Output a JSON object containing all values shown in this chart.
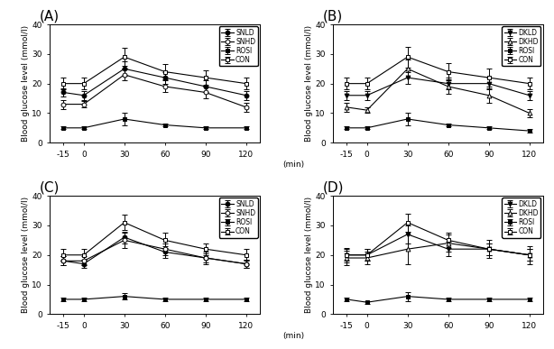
{
  "x": [
    -15,
    0,
    30,
    60,
    90,
    120
  ],
  "panels": {
    "A": {
      "title": "(A)",
      "legend_labels": [
        "SNLD",
        "SNHD",
        "ROSI",
        "CON"
      ],
      "series": {
        "SNLD": {
          "y": [
            17,
            16,
            25,
            22,
            19,
            16
          ],
          "yerr": [
            1.5,
            1.5,
            2.5,
            2,
            2,
            1.5
          ],
          "marker": "o",
          "filled": true
        },
        "SNHD": {
          "y": [
            13,
            13,
            23,
            19,
            17,
            12
          ],
          "yerr": [
            1.5,
            1,
            2,
            2,
            2,
            1.5
          ],
          "marker": "o",
          "filled": false
        },
        "ROSI": {
          "y": [
            5,
            5,
            8,
            6,
            5,
            5
          ],
          "yerr": [
            0.5,
            0.5,
            2,
            0.5,
            0.5,
            0.5
          ],
          "marker": "s",
          "filled": true
        },
        "CON": {
          "y": [
            20,
            20,
            29,
            24,
            22,
            20
          ],
          "yerr": [
            2,
            2,
            3,
            2.5,
            2.5,
            2
          ],
          "marker": "s",
          "filled": false
        }
      }
    },
    "B": {
      "title": "(B)",
      "legend_labels": [
        "DKLD",
        "DKHD",
        "ROSI",
        "CON"
      ],
      "series": {
        "DKLD": {
          "y": [
            16,
            16,
            22,
            20,
            20,
            16
          ],
          "yerr": [
            1.5,
            1.5,
            2,
            2,
            2,
            1.5
          ],
          "marker": "v",
          "filled": true
        },
        "DKHD": {
          "y": [
            12,
            11,
            25,
            19,
            16,
            10
          ],
          "yerr": [
            1.5,
            1,
            3,
            2.5,
            2.5,
            1.5
          ],
          "marker": "^",
          "filled": false
        },
        "ROSI": {
          "y": [
            5,
            5,
            8,
            6,
            5,
            4
          ],
          "yerr": [
            0.5,
            0.5,
            2,
            0.5,
            0.5,
            0.5
          ],
          "marker": "s",
          "filled": true
        },
        "CON": {
          "y": [
            20,
            20,
            29,
            24,
            22,
            20
          ],
          "yerr": [
            2,
            2,
            3.5,
            3,
            3,
            2
          ],
          "marker": "s",
          "filled": false
        }
      }
    },
    "C": {
      "title": "(C)",
      "legend_labels": [
        "SNLD",
        "SNHD",
        "ROSI",
        "CON"
      ],
      "series": {
        "SNLD": {
          "y": [
            18,
            17,
            26,
            21,
            19,
            17
          ],
          "yerr": [
            1.5,
            1.5,
            2,
            2,
            1.5,
            1.5
          ],
          "marker": "o",
          "filled": true
        },
        "SNHD": {
          "y": [
            18,
            18,
            25,
            22,
            19,
            17
          ],
          "yerr": [
            1.5,
            1.5,
            2.5,
            2,
            2,
            1.5
          ],
          "marker": "o",
          "filled": false
        },
        "ROSI": {
          "y": [
            5,
            5,
            6,
            5,
            5,
            5
          ],
          "yerr": [
            0.5,
            0.5,
            1,
            0.5,
            0.5,
            0.5
          ],
          "marker": "s",
          "filled": true
        },
        "CON": {
          "y": [
            20,
            20,
            31,
            25,
            22,
            20
          ],
          "yerr": [
            2,
            2,
            2.5,
            2.5,
            2,
            2
          ],
          "marker": "s",
          "filled": false
        }
      }
    },
    "D": {
      "title": "(D)",
      "legend_labels": [
        "DKLD",
        "DKHD",
        "ROSI",
        "CON"
      ],
      "series": {
        "DKLD": {
          "y": [
            20,
            20,
            27,
            22,
            22,
            20
          ],
          "yerr": [
            2,
            2,
            3,
            2.5,
            2,
            2
          ],
          "marker": "v",
          "filled": true
        },
        "DKHD": {
          "y": [
            19,
            19,
            22,
            24,
            22,
            20
          ],
          "yerr": [
            2.5,
            2,
            5,
            3,
            3,
            3
          ],
          "marker": "^",
          "filled": false
        },
        "ROSI": {
          "y": [
            5,
            4,
            6,
            5,
            5,
            5
          ],
          "yerr": [
            0.5,
            0.5,
            1.5,
            0.5,
            0.5,
            0.5
          ],
          "marker": "s",
          "filled": true
        },
        "CON": {
          "y": [
            20,
            20,
            31,
            25,
            22,
            20
          ],
          "yerr": [
            2.5,
            2,
            3,
            2.5,
            2,
            2
          ],
          "marker": "s",
          "filled": false
        }
      }
    }
  },
  "ylim": [
    0,
    40
  ],
  "yticks": [
    0,
    10,
    20,
    30,
    40
  ],
  "xlabel": "(min)",
  "ylabel": "Blood glucose level (mmol/l)",
  "background_color": "#ffffff",
  "fontsize": 6.5,
  "title_fontsize": 11,
  "marker_size": 3.5,
  "linewidth": 0.8,
  "elinewidth": 0.7,
  "capsize": 2
}
